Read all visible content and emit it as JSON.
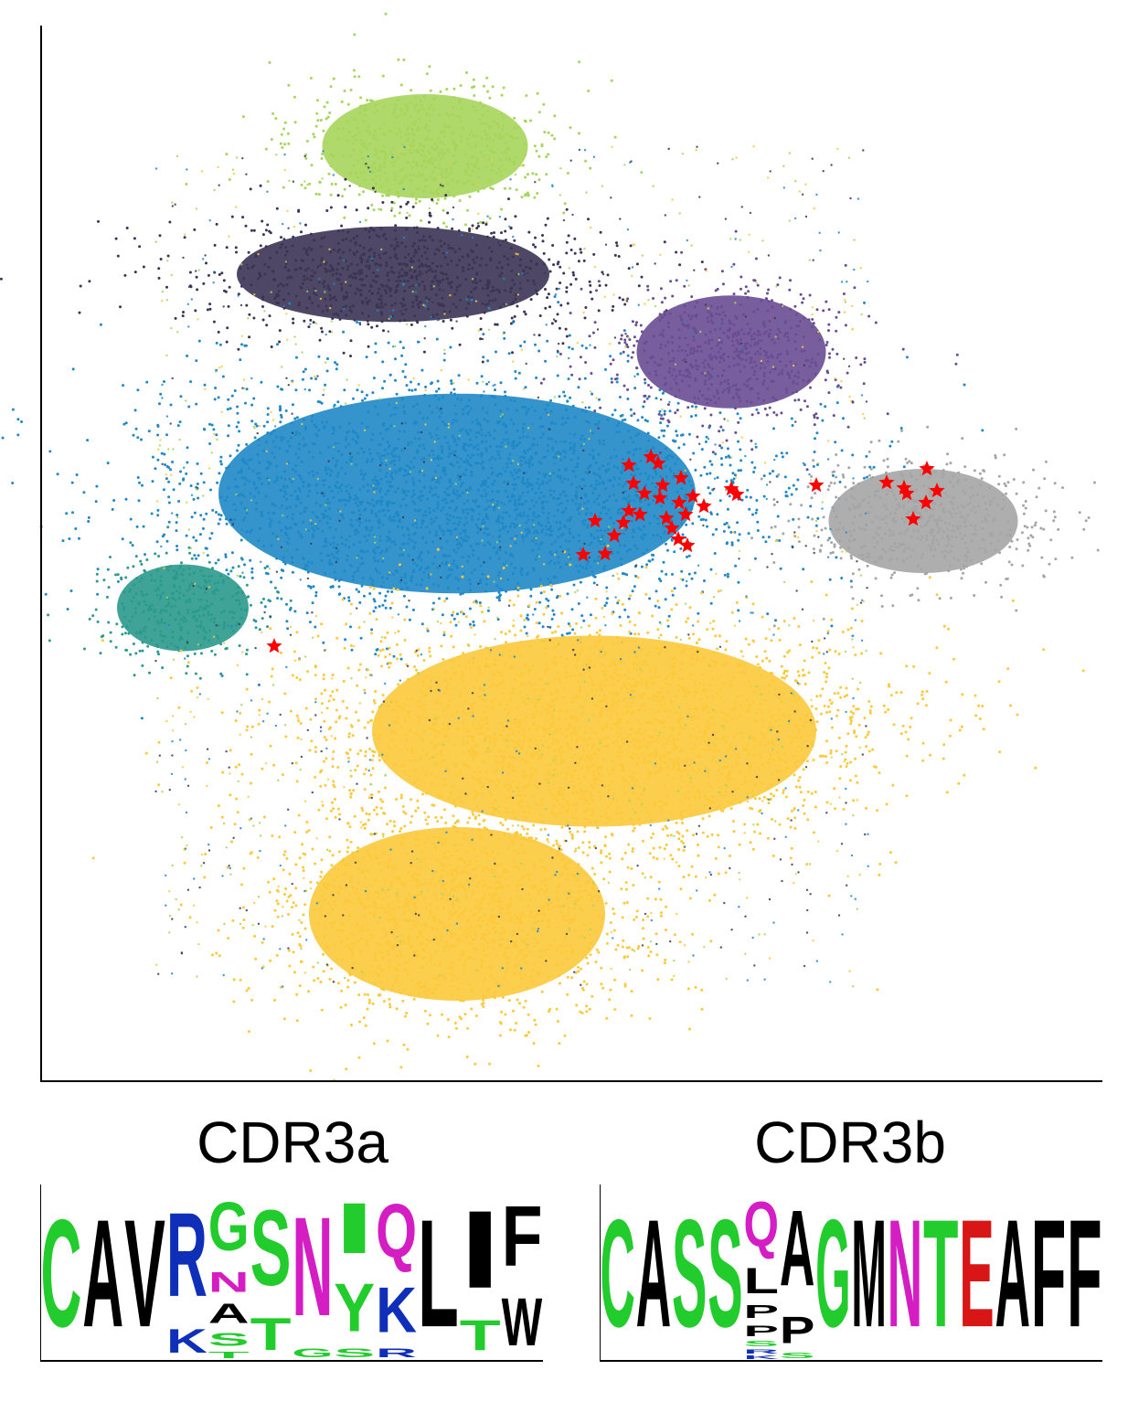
{
  "colors": {
    "light_green": "#a6d55b",
    "dark_navy": "#3b3455",
    "blue": "#1f88c6",
    "purple": "#6a4c93",
    "teal": "#2a9a8c",
    "yellow": "#fcc93a",
    "gray": "#a5a5a5",
    "highlight_red": "#ff0000",
    "residue_green": "#22cc2c",
    "residue_black": "#000000",
    "residue_blue": "#0f2fb8",
    "residue_magenta": "#d41ec4",
    "residue_red": "#d81616"
  },
  "chart_data": [
    {
      "type": "scatter",
      "title": "",
      "xlabel": "",
      "ylabel": "",
      "grid": false,
      "legend": "none",
      "axes": "left and bottom spines only, no ticks",
      "clusters": [
        {
          "color_key": "light_green",
          "center": [
            465,
            160
          ],
          "spread": [
            125,
            60
          ]
        },
        {
          "color_key": "dark_navy",
          "center": [
            430,
            300
          ],
          "spread": [
            190,
            55
          ]
        },
        {
          "color_key": "blue",
          "center": [
            500,
            540
          ],
          "spread": [
            290,
            115
          ]
        },
        {
          "color_key": "purple",
          "center": [
            800,
            385
          ],
          "spread": [
            115,
            65
          ]
        },
        {
          "color_key": "teal",
          "center": [
            200,
            665
          ],
          "spread": [
            80,
            50
          ]
        },
        {
          "color_key": "gray",
          "center": [
            1010,
            570
          ],
          "spread": [
            115,
            60
          ]
        },
        {
          "color_key": "yellow",
          "center": [
            650,
            800
          ],
          "spread": [
            270,
            110
          ]
        },
        {
          "color_key": "yellow",
          "center": [
            500,
            1000
          ],
          "spread": [
            180,
            100
          ]
        }
      ],
      "highlighted_points": [
        [
          712,
          500
        ],
        [
          720,
          507
        ],
        [
          688,
          509
        ],
        [
          745,
          523
        ],
        [
          693,
          529
        ],
        [
          725,
          531
        ],
        [
          705,
          540
        ],
        [
          722,
          545
        ],
        [
          743,
          550
        ],
        [
          758,
          543
        ],
        [
          770,
          554
        ],
        [
          800,
          535
        ],
        [
          806,
          541
        ],
        [
          893,
          531
        ],
        [
          688,
          559
        ],
        [
          700,
          563
        ],
        [
          729,
          567
        ],
        [
          750,
          563
        ],
        [
          735,
          578
        ],
        [
          651,
          570
        ],
        [
          682,
          572
        ],
        [
          672,
          586
        ],
        [
          742,
          590
        ],
        [
          752,
          597
        ],
        [
          638,
          607
        ],
        [
          662,
          606
        ],
        [
          970,
          528
        ],
        [
          989,
          534
        ],
        [
          992,
          540
        ],
        [
          1014,
          513
        ],
        [
          1025,
          537
        ],
        [
          1013,
          550
        ],
        [
          999,
          568
        ],
        [
          300,
          707
        ]
      ]
    },
    {
      "type": "sequence_logo",
      "title": "CDR3a",
      "positions": [
        [
          {
            "letter": "C",
            "color": "residue_green",
            "weight": 1.0
          }
        ],
        [
          {
            "letter": "A",
            "color": "residue_black",
            "weight": 1.0
          }
        ],
        [
          {
            "letter": "V",
            "color": "residue_black",
            "weight": 1.0
          }
        ],
        [
          {
            "letter": "R",
            "color": "residue_blue",
            "weight": 0.78
          },
          {
            "letter": "K",
            "color": "residue_blue",
            "weight": 0.22
          }
        ],
        [
          {
            "letter": "G",
            "color": "residue_green",
            "weight": 0.45
          },
          {
            "letter": "A",
            "color": "residue_black",
            "weight": 0.18
          },
          {
            "letter": "N",
            "color": "residue_magenta",
            "weight": 0.19
          },
          {
            "letter": "S",
            "color": "residue_green",
            "weight": 0.12
          },
          {
            "letter": "T",
            "color": "residue_green",
            "weight": 0.06
          }
        ],
        [
          {
            "letter": "S",
            "color": "residue_green",
            "weight": 0.7
          },
          {
            "letter": "T",
            "color": "residue_green",
            "weight": 0.3
          }
        ],
        [
          {
            "letter": "N",
            "color": "residue_magenta",
            "weight": 0.92
          },
          {
            "letter": "G",
            "color": "residue_green",
            "weight": 0.08
          }
        ],
        [
          {
            "letter": "Y",
            "color": "residue_green",
            "weight": 0.45
          },
          {
            "letter": "I",
            "color": "residue_green",
            "weight": 0.47
          },
          {
            "letter": "S",
            "color": "residue_green",
            "weight": 0.08
          }
        ],
        [
          {
            "letter": "K",
            "color": "residue_blue",
            "weight": 0.42
          },
          {
            "letter": "Q",
            "color": "residue_magenta",
            "weight": 0.5
          },
          {
            "letter": "R",
            "color": "residue_blue",
            "weight": 0.08
          }
        ],
        [
          {
            "letter": "L",
            "color": "residue_black",
            "weight": 1.0
          }
        ],
        [
          {
            "letter": "I",
            "color": "residue_black",
            "weight": 0.72
          },
          {
            "letter": "T",
            "color": "residue_green",
            "weight": 0.28
          }
        ],
        [
          {
            "letter": "F",
            "color": "residue_black",
            "weight": 0.56
          },
          {
            "letter": "W",
            "color": "residue_black",
            "weight": 0.44
          }
        ]
      ]
    },
    {
      "type": "sequence_logo",
      "title": "CDR3b",
      "positions": [
        [
          {
            "letter": "C",
            "color": "residue_green",
            "weight": 1.0
          }
        ],
        [
          {
            "letter": "A",
            "color": "residue_black",
            "weight": 1.0
          }
        ],
        [
          {
            "letter": "S",
            "color": "residue_green",
            "weight": 1.0
          }
        ],
        [
          {
            "letter": "S",
            "color": "residue_green",
            "weight": 1.0
          }
        ],
        [
          {
            "letter": "Q",
            "color": "residue_magenta",
            "weight": 0.42
          },
          {
            "letter": "L",
            "color": "residue_black",
            "weight": 0.24
          },
          {
            "letter": "P",
            "color": "residue_black",
            "weight": 0.12
          },
          {
            "letter": "P",
            "color": "residue_black",
            "weight": 0.1
          },
          {
            "letter": "S",
            "color": "residue_green",
            "weight": 0.05
          },
          {
            "letter": "R",
            "color": "residue_blue",
            "weight": 0.04
          },
          {
            "letter": "K",
            "color": "residue_blue",
            "weight": 0.03
          }
        ],
        [
          {
            "letter": "A",
            "color": "residue_black",
            "weight": 0.7
          },
          {
            "letter": "P",
            "color": "residue_black",
            "weight": 0.25
          },
          {
            "letter": "S",
            "color": "residue_green",
            "weight": 0.05
          }
        ],
        [
          {
            "letter": "G",
            "color": "residue_green",
            "weight": 1.0
          }
        ],
        [
          {
            "letter": "M",
            "color": "residue_black",
            "weight": 1.0
          }
        ],
        [
          {
            "letter": "N",
            "color": "residue_magenta",
            "weight": 1.0
          }
        ],
        [
          {
            "letter": "T",
            "color": "residue_green",
            "weight": 1.0
          }
        ],
        [
          {
            "letter": "E",
            "color": "residue_red",
            "weight": 1.0
          }
        ],
        [
          {
            "letter": "A",
            "color": "residue_black",
            "weight": 1.0
          }
        ],
        [
          {
            "letter": "F",
            "color": "residue_black",
            "weight": 1.0
          }
        ],
        [
          {
            "letter": "F",
            "color": "residue_black",
            "weight": 1.0
          }
        ]
      ]
    }
  ]
}
